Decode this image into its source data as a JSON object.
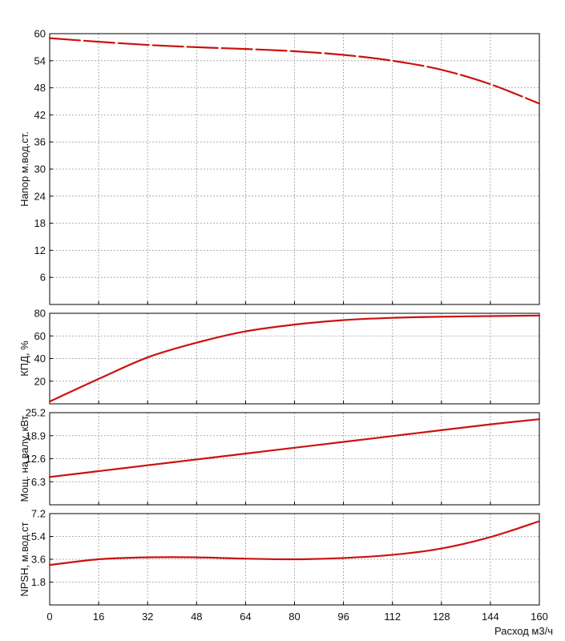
{
  "chart_data": {
    "type": "line",
    "x_ticks": [
      "0",
      "16",
      "32",
      "48",
      "64",
      "80",
      "96",
      "112",
      "128",
      "144",
      "160"
    ],
    "xlim": [
      0,
      160
    ],
    "xlabel": "Расход м3/ч",
    "grid": true,
    "line_color": "#cc1111",
    "panels": [
      {
        "ylabel": "Напор м.вод.ст.",
        "ylim": [
          0,
          60
        ],
        "y_ticks": [
          {
            "v": 6,
            "t": "6"
          },
          {
            "v": 12,
            "t": "12"
          },
          {
            "v": 18,
            "t": "18"
          },
          {
            "v": 24,
            "t": "24"
          },
          {
            "v": 30,
            "t": "30"
          },
          {
            "v": 36,
            "t": "36"
          },
          {
            "v": 42,
            "t": "42"
          },
          {
            "v": 48,
            "t": "48"
          },
          {
            "v": 54,
            "t": "54"
          },
          {
            "v": 60,
            "t": "60"
          }
        ],
        "dashed": true,
        "series": [
          {
            "x": [
              0,
              16,
              32,
              48,
              64,
              80,
              96,
              112,
              128,
              144,
              160
            ],
            "y": [
              59.0,
              58.2,
              57.5,
              57.0,
              56.6,
              56.1,
              55.3,
              54.0,
              52.0,
              48.8,
              44.5
            ]
          }
        ]
      },
      {
        "ylabel": "КПД, %",
        "ylim": [
          0,
          80
        ],
        "y_ticks": [
          {
            "v": 20,
            "t": "20"
          },
          {
            "v": 40,
            "t": "40"
          },
          {
            "v": 60,
            "t": "60"
          },
          {
            "v": 80,
            "t": "80"
          }
        ],
        "dashed": false,
        "series": [
          {
            "x": [
              0,
              16,
              32,
              48,
              64,
              80,
              96,
              112,
              128,
              144,
              160
            ],
            "y": [
              2,
              22,
              41,
              54,
              64,
              70,
              74,
              76,
              77,
              77.5,
              78
            ]
          }
        ]
      },
      {
        "ylabel": "Мощ. на валу, кВт",
        "ylim": [
          0,
          25.2
        ],
        "y_ticks": [
          {
            "v": 6.3,
            "t": "6.3"
          },
          {
            "v": 12.6,
            "t": "12.6"
          },
          {
            "v": 18.9,
            "t": "18.9"
          },
          {
            "v": 25.2,
            "t": "25.2"
          }
        ],
        "dashed": false,
        "series": [
          {
            "x": [
              0,
              16,
              32,
              48,
              64,
              80,
              96,
              112,
              128,
              144,
              160
            ],
            "y": [
              7.6,
              9.2,
              10.8,
              12.4,
              14.0,
              15.6,
              17.2,
              18.8,
              20.4,
              22.0,
              23.4
            ]
          }
        ]
      },
      {
        "ylabel": "NPSH, м.вод.ст",
        "ylim": [
          0,
          7.2
        ],
        "y_ticks": [
          {
            "v": 1.8,
            "t": "1.8"
          },
          {
            "v": 3.6,
            "t": "3.6"
          },
          {
            "v": 5.4,
            "t": "5.4"
          },
          {
            "v": 7.2,
            "t": "7.2"
          }
        ],
        "dashed": false,
        "series": [
          {
            "x": [
              0,
              16,
              32,
              48,
              64,
              80,
              96,
              112,
              128,
              144,
              160
            ],
            "y": [
              3.15,
              3.6,
              3.75,
              3.75,
              3.65,
              3.6,
              3.7,
              3.95,
              4.45,
              5.35,
              6.6
            ]
          }
        ]
      }
    ]
  }
}
